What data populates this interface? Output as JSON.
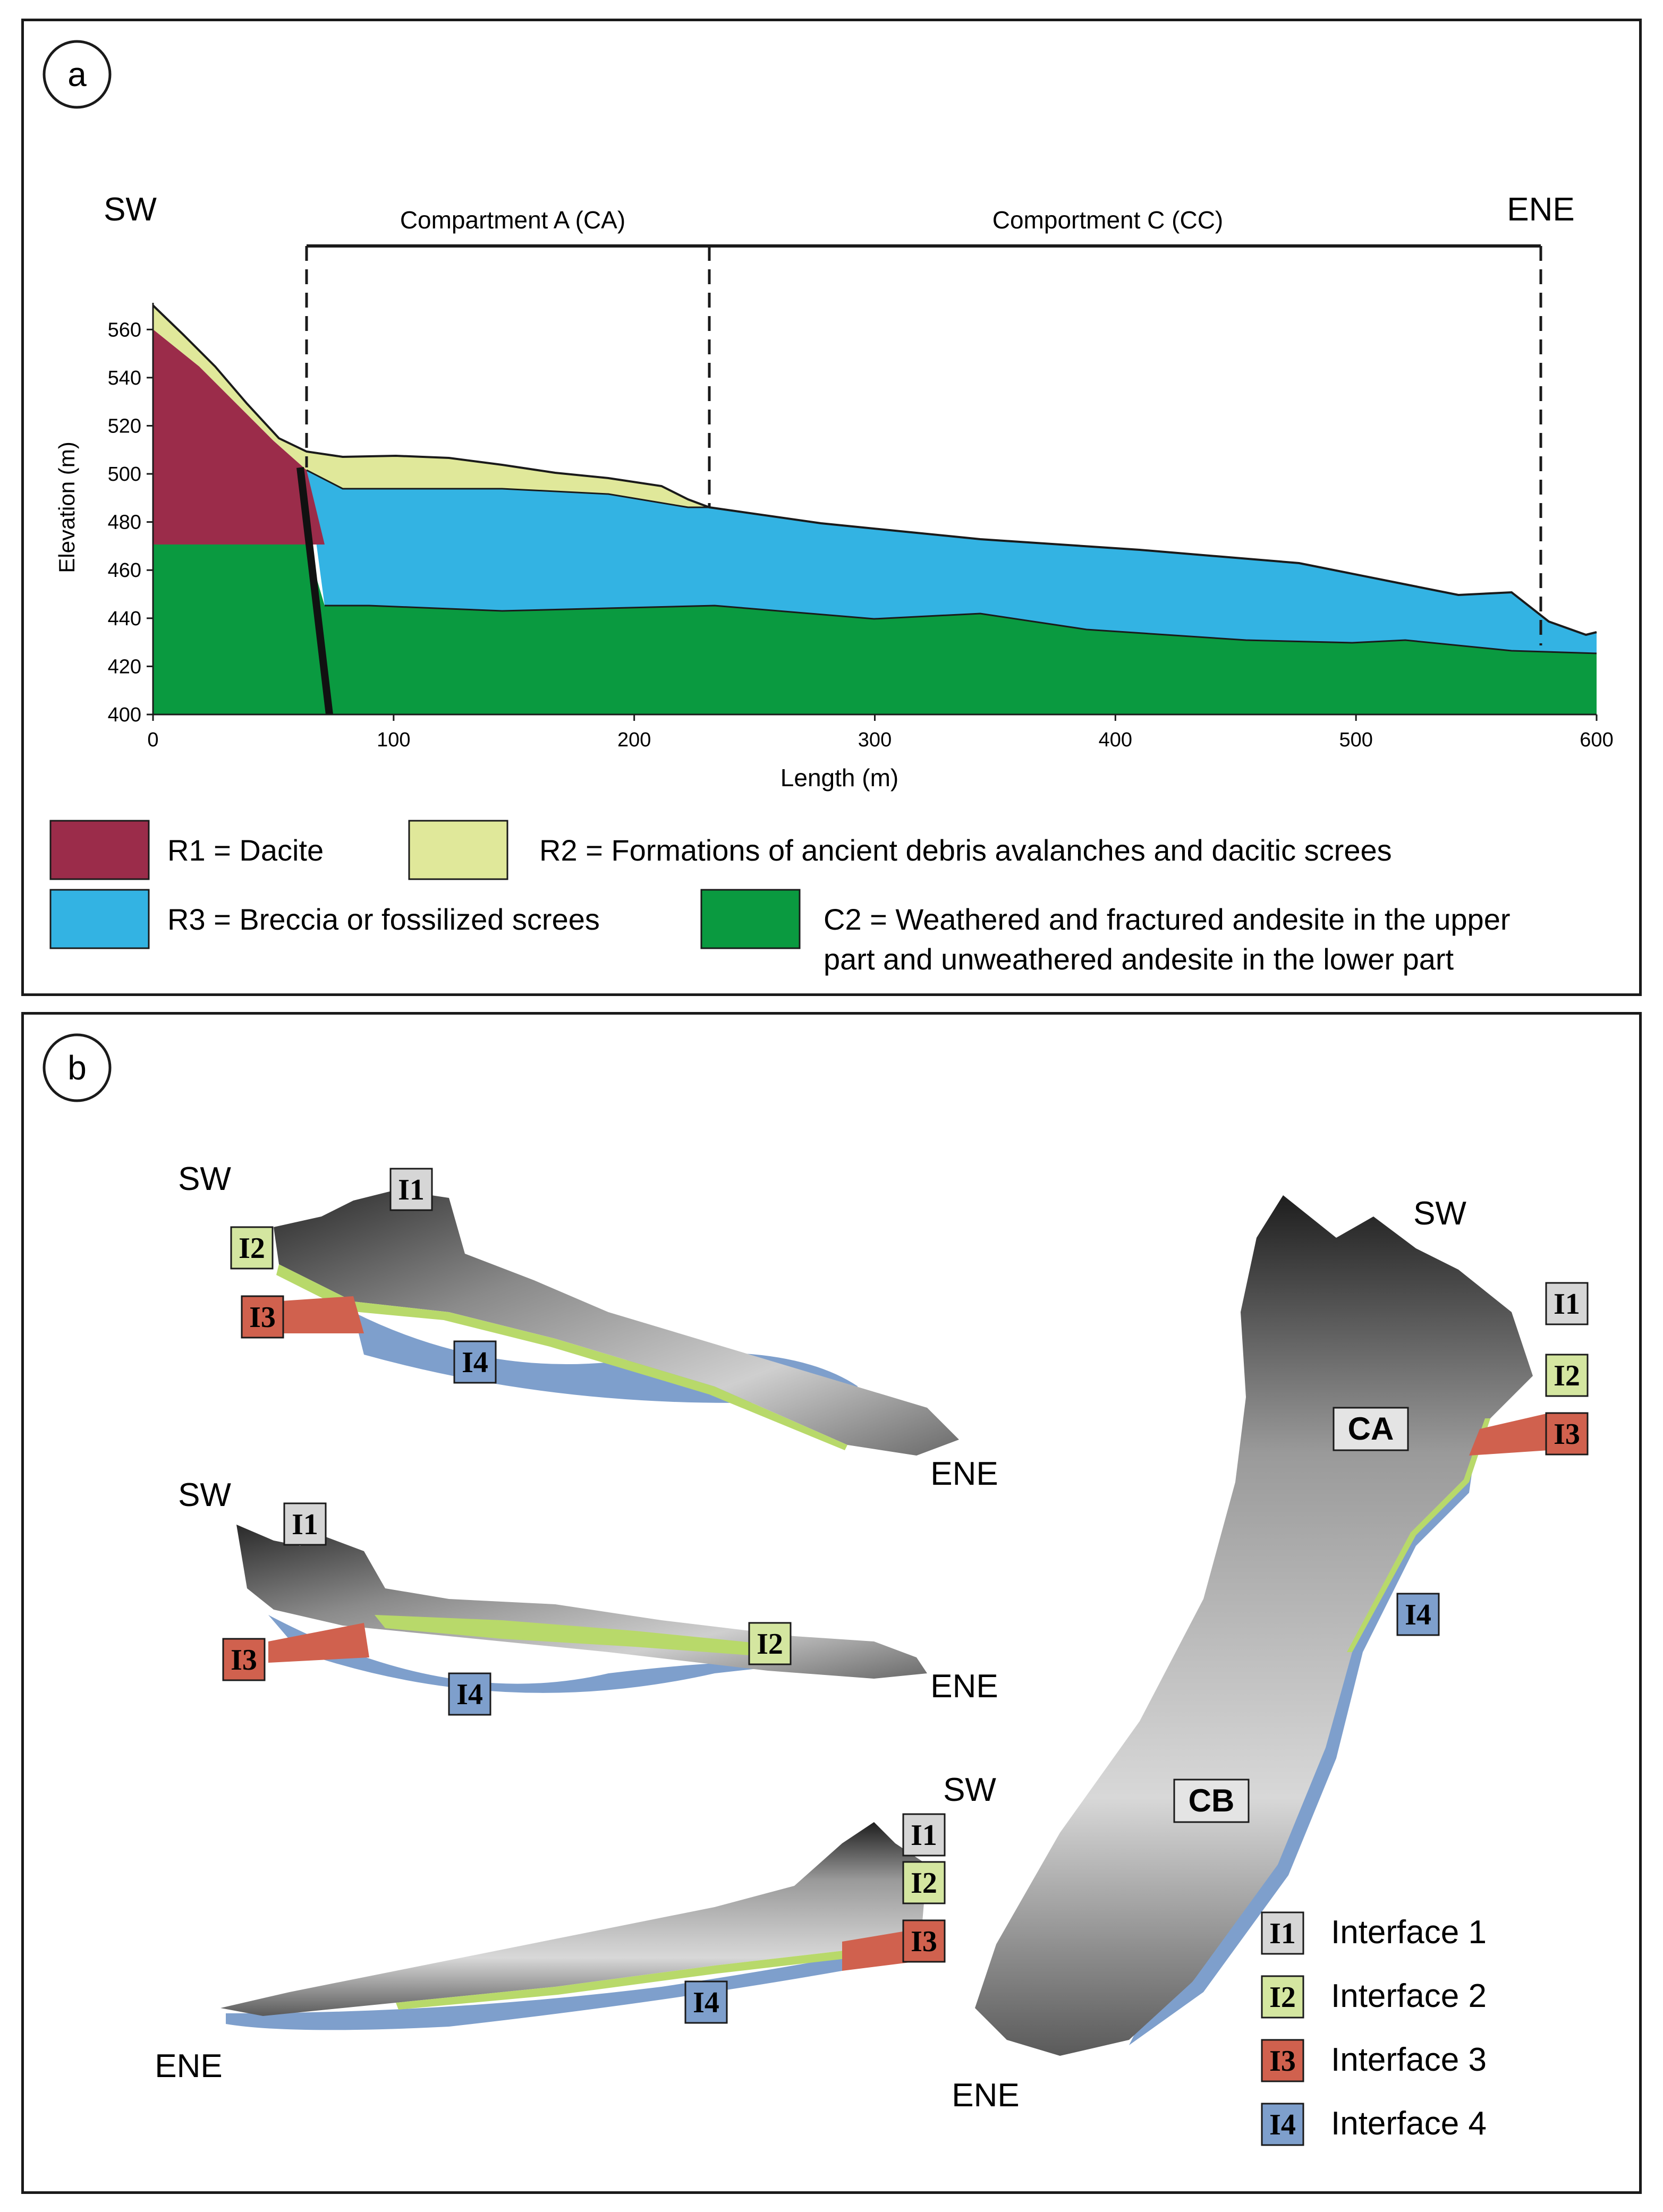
{
  "panel_a": {
    "letter": "a",
    "dir_left": "SW",
    "dir_right": "ENE",
    "compartment_1": "Compartment A (CA)",
    "compartment_2": "Comportment C (CC)",
    "y_axis_label": "Elevation (m)",
    "x_axis_label": "Length (m)",
    "x_ticks": [
      "0",
      "100",
      "200",
      "300",
      "400",
      "500",
      "600"
    ],
    "y_ticks": [
      "400",
      "420",
      "440",
      "460",
      "480",
      "500",
      "520",
      "540",
      "560"
    ],
    "legend": [
      {
        "key": "R1",
        "text": "R1 = Dacite",
        "color": "#9b2c4a"
      },
      {
        "key": "R2",
        "text": "R2 = Formations of ancient debris avalanches and dacitic screes",
        "color": "#e0e89a"
      },
      {
        "key": "R3",
        "text": "R3 = Breccia or fossilized screes",
        "color": "#33b3e3"
      },
      {
        "key": "C2",
        "text_line1": "C2 = Weathered and fractured andesite in the upper",
        "text_line2": "part and unweathered andesite in the lower part",
        "color": "#0a9a40"
      }
    ]
  },
  "panel_b": {
    "letter": "b",
    "view1": {
      "sw": "SW",
      "ene": "ENE",
      "tags": [
        "I1",
        "I2",
        "I3",
        "I4"
      ]
    },
    "view2": {
      "sw": "SW",
      "ene": "ENE",
      "tags": [
        "I1",
        "I2",
        "I3",
        "I4"
      ]
    },
    "view3": {
      "sw": "SW",
      "ene": "ENE",
      "tags": [
        "I1",
        "I2",
        "I3",
        "I4"
      ]
    },
    "view4": {
      "sw": "SW",
      "ene": "ENE",
      "tags": [
        "I1",
        "I2",
        "I3",
        "I4"
      ],
      "ca": "CA",
      "cb": "CB"
    },
    "legend": [
      {
        "key": "I1",
        "text": "Interface 1",
        "color": "#d6d6d6"
      },
      {
        "key": "I2",
        "text": "Interface 2",
        "color": "#d4e6a0"
      },
      {
        "key": "I3",
        "text": "Interface 3",
        "color": "#d0614e"
      },
      {
        "key": "I4",
        "text": "Interface 4",
        "color": "#7e9fcc"
      }
    ]
  }
}
